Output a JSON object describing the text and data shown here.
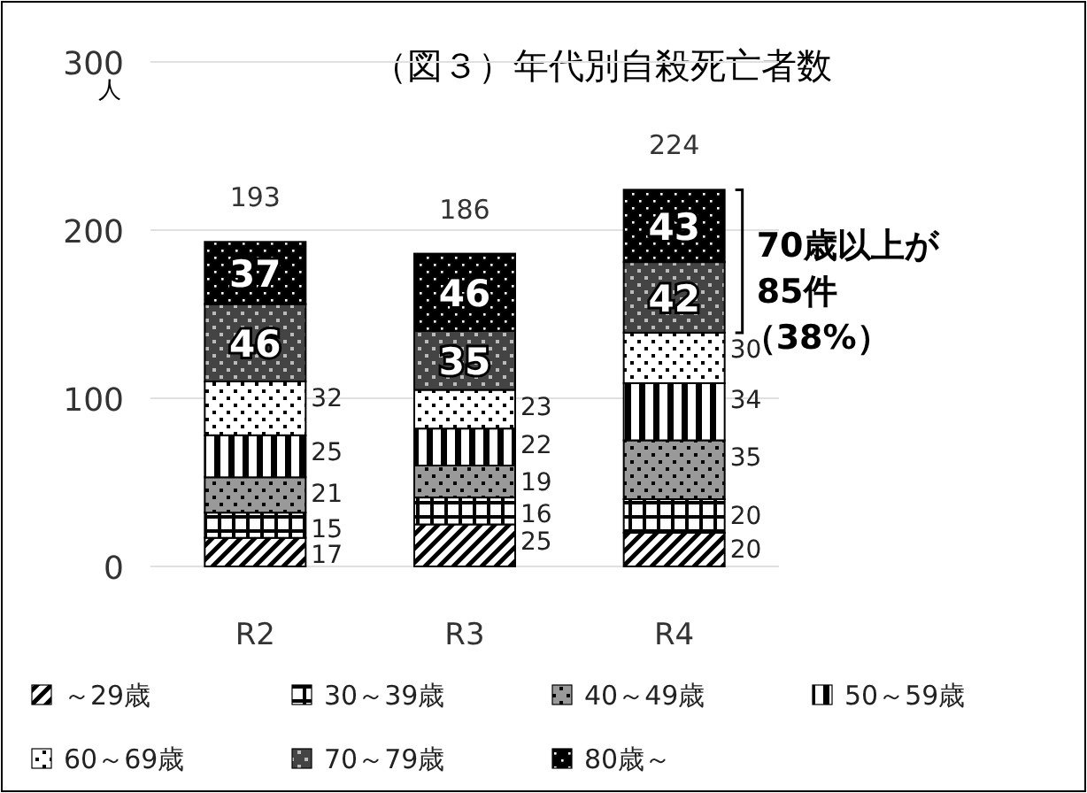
{
  "chart_data": {
    "type": "bar",
    "title": "（図３）年代別自殺死亡者数",
    "ylabel": "人",
    "categories": [
      "R2",
      "R3",
      "R4"
    ],
    "stacked": true,
    "series": [
      {
        "name": "～29歳",
        "color": "#000000",
        "values": [
          17,
          25,
          20
        ]
      },
      {
        "name": "30～39歳",
        "color": "#000000",
        "values": [
          15,
          16,
          20
        ]
      },
      {
        "name": "40～49歳",
        "color": "#000000",
        "values": [
          21,
          19,
          35
        ]
      },
      {
        "name": "50～59歳",
        "color": "#000000",
        "values": [
          25,
          22,
          34
        ]
      },
      {
        "name": "60～69歳",
        "color": "#000000",
        "values": [
          32,
          23,
          30
        ]
      },
      {
        "name": "70～79歳",
        "color": "#000000",
        "values": [
          46,
          35,
          42
        ]
      },
      {
        "name": "80歳～",
        "color": "#000000",
        "values": [
          37,
          46,
          43
        ]
      }
    ],
    "ylim": [
      0,
      300
    ],
    "yticks": [
      0,
      100,
      200,
      300
    ],
    "grid": "y",
    "legend": "bottom",
    "data_labels": true,
    "totals": [
      "193",
      "186",
      "224"
    ],
    "annotations": [
      "70歳以上が",
      "85件",
      "（38%）"
    ]
  }
}
